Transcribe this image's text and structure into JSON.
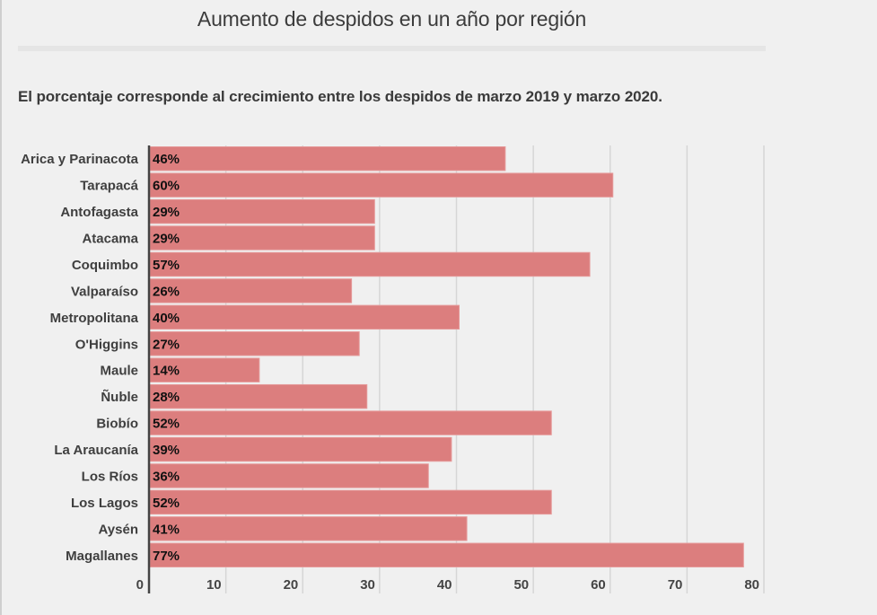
{
  "chart_data": {
    "type": "bar",
    "orientation": "horizontal",
    "title": "Aumento de despidos en un año por región",
    "subtitle": "El porcentaje corresponde al crecimiento entre los despidos de marzo 2019 y marzo 2020.",
    "xlabel": "",
    "ylabel": "",
    "categories": [
      "Arica y Parinacota",
      "Tarapacá",
      "Antofagasta",
      "Atacama",
      "Coquimbo",
      "Valparaíso",
      "Metropolitana",
      "O'Higgins",
      "Maule",
      "Ñuble",
      "Biobío",
      "La Araucanía",
      "Los Ríos",
      "Los Lagos",
      "Aysén",
      "Magallanes"
    ],
    "values": [
      46,
      60,
      29,
      29,
      57,
      26,
      40,
      27,
      14,
      28,
      52,
      39,
      36,
      52,
      41,
      77
    ],
    "data_labels": [
      "46%",
      "60%",
      "29%",
      "29%",
      "57%",
      "26%",
      "40%",
      "27%",
      "14%",
      "28%",
      "52%",
      "39%",
      "36%",
      "52%",
      "41%",
      "77%"
    ],
    "xlim": [
      0,
      80
    ],
    "x_ticks": [
      0,
      10,
      20,
      30,
      40,
      50,
      60,
      70,
      80
    ],
    "x_tick_labels": [
      "0",
      "10",
      "20",
      "30",
      "40",
      "50",
      "60",
      "70",
      "80"
    ],
    "grid": true,
    "legend": "none",
    "colors": {
      "bar": "#dc7e7e",
      "bar_edge": "#e59a9a",
      "grid": "#d6d6d6",
      "axis": "#444444"
    }
  }
}
